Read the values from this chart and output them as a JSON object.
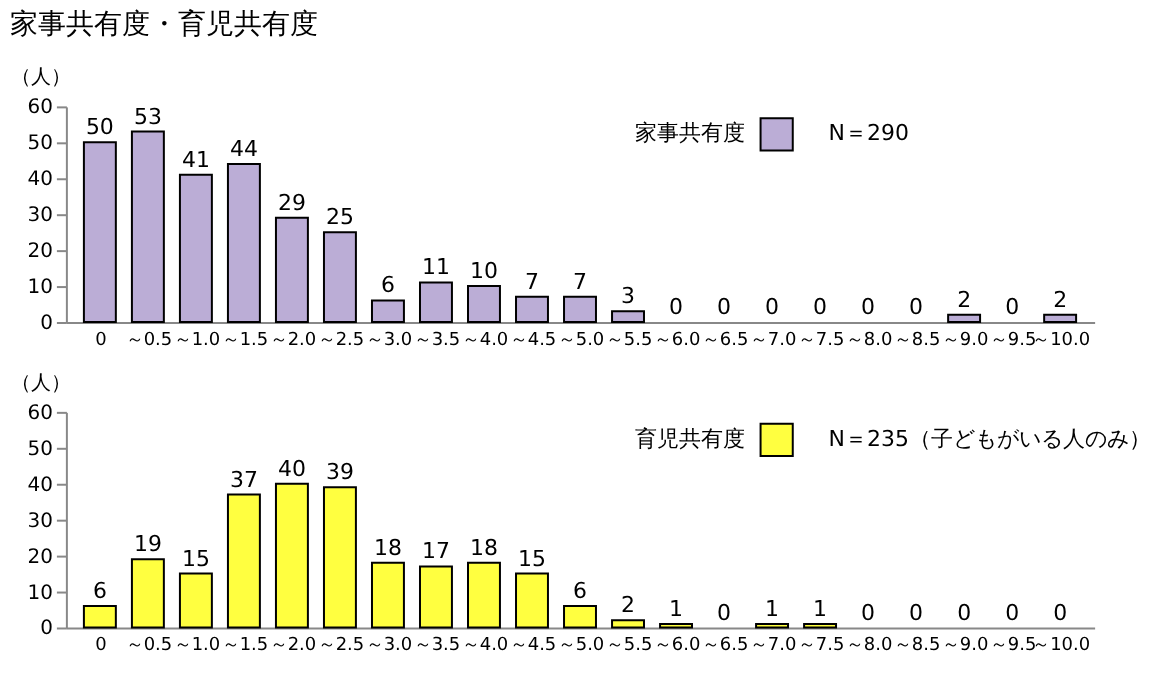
{
  "chart_data": [
    {
      "type": "bar",
      "title": "家事共有度・育児共有度",
      "ylabel": "（人）",
      "categories": [
        "0",
        "～0.5",
        "～1.0",
        "～1.5",
        "～2.0",
        "～2.5",
        "～3.0",
        "～3.5",
        "～4.0",
        "～4.5",
        "～5.0",
        "～5.5",
        "～6.0",
        "～6.5",
        "～7.0",
        "～7.5",
        "～8.0",
        "～8.5",
        "～9.0",
        "～9.5",
        "～10.0"
      ],
      "series": [
        {
          "name": "家事共有度",
          "color": "#bbadd6",
          "values": [
            50,
            53,
            41,
            44,
            29,
            25,
            6,
            11,
            10,
            7,
            7,
            3,
            0,
            0,
            0,
            0,
            0,
            0,
            2,
            0,
            2
          ]
        }
      ],
      "annotations": [
        "N＝290"
      ],
      "ylim": [
        0,
        60
      ],
      "yticks": [
        0,
        10,
        20,
        30,
        40,
        50,
        60
      ],
      "data_labels": true,
      "legend": "top right",
      "grid": false
    },
    {
      "type": "bar",
      "ylabel": "（人）",
      "categories": [
        "0",
        "～0.5",
        "～1.0",
        "～1.5",
        "～2.0",
        "～2.5",
        "～3.0",
        "～3.5",
        "～4.0",
        "～4.5",
        "～5.0",
        "～5.5",
        "～6.0",
        "～6.5",
        "～7.0",
        "～7.5",
        "～8.0",
        "～8.5",
        "～9.0",
        "～9.5",
        "～10.0"
      ],
      "series": [
        {
          "name": "育児共有度",
          "color": "#ffff40",
          "values": [
            6,
            19,
            15,
            37,
            40,
            39,
            18,
            17,
            18,
            15,
            6,
            2,
            1,
            0,
            1,
            1,
            0,
            0,
            0,
            0,
            0
          ]
        }
      ],
      "annotations": [
        "N＝235（子どもがいる人のみ）"
      ],
      "ylim": [
        0,
        60
      ],
      "yticks": [
        0,
        10,
        20,
        30,
        40,
        50,
        60
      ],
      "data_labels": true,
      "legend": "top right",
      "grid": false
    }
  ]
}
